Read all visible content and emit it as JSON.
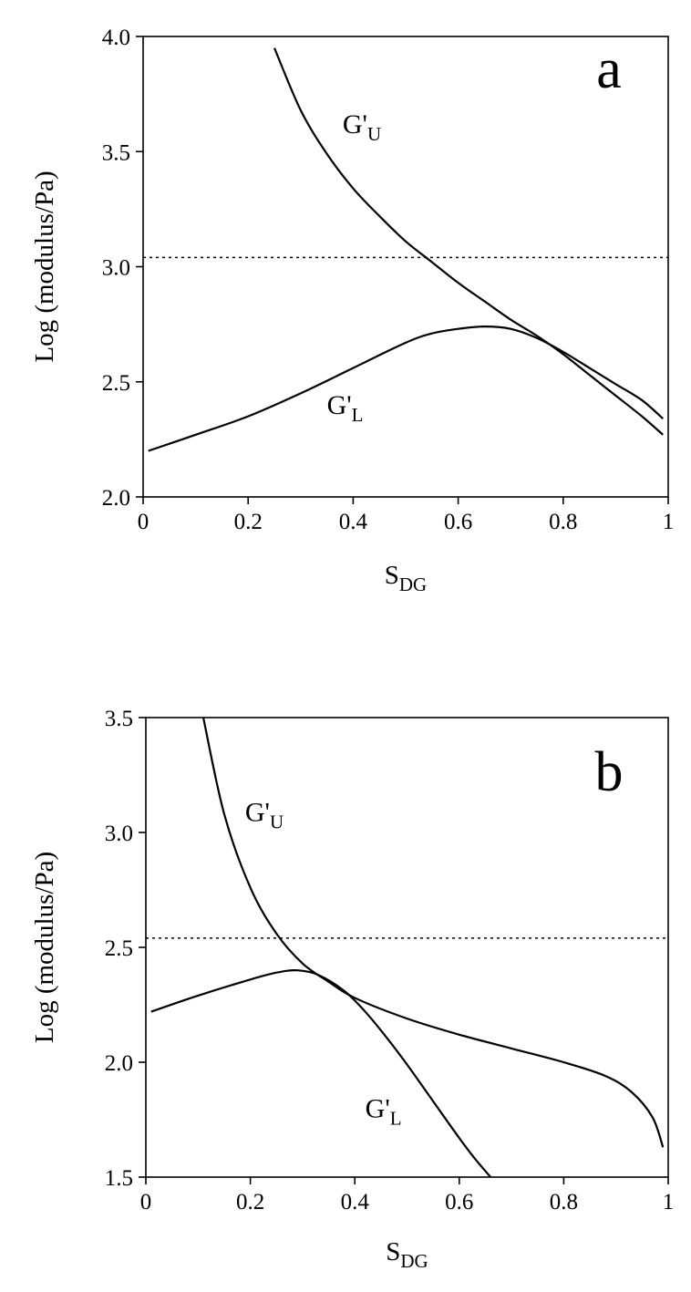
{
  "chart_data": [
    {
      "type": "line",
      "panel": "a",
      "xlabel": "S",
      "xlabel_sub": "DG",
      "ylabel": "Log (modulus/Pa)",
      "xlim": [
        0,
        1
      ],
      "ylim": [
        2.0,
        4.0
      ],
      "x_ticks": [
        0,
        0.2,
        0.4,
        0.6,
        0.8,
        1
      ],
      "x_tick_labels": [
        "0",
        "0.2",
        "0.4",
        "0.6",
        "0.8",
        "1"
      ],
      "y_ticks": [
        2.0,
        2.5,
        3.0,
        3.5,
        4.0
      ],
      "y_tick_labels": [
        "2.0",
        "2.5",
        "3.0",
        "3.5",
        "4.0"
      ],
      "grid": false,
      "reference_line": {
        "y": 3.04,
        "style": "dotted"
      },
      "series": [
        {
          "name": "G'",
          "name_sub": "U",
          "x": [
            0.25,
            0.3,
            0.35,
            0.4,
            0.45,
            0.5,
            0.55,
            0.6,
            0.65,
            0.7,
            0.75,
            0.8,
            0.85,
            0.9,
            0.95,
            0.99
          ],
          "y": [
            3.95,
            3.68,
            3.49,
            3.34,
            3.22,
            3.11,
            3.02,
            2.93,
            2.85,
            2.77,
            2.7,
            2.62,
            2.53,
            2.44,
            2.35,
            2.27
          ]
        },
        {
          "name": "G'",
          "name_sub": "L",
          "x": [
            0.01,
            0.1,
            0.2,
            0.3,
            0.4,
            0.5,
            0.55,
            0.6,
            0.65,
            0.7,
            0.75,
            0.8,
            0.85,
            0.9,
            0.95,
            0.99
          ],
          "y": [
            2.2,
            2.27,
            2.35,
            2.45,
            2.56,
            2.67,
            2.71,
            2.73,
            2.74,
            2.73,
            2.69,
            2.63,
            2.56,
            2.49,
            2.42,
            2.34
          ]
        }
      ],
      "labels": [
        {
          "text": "G'",
          "sub": "U",
          "x": 0.38,
          "y": 3.58
        },
        {
          "text": "G'",
          "sub": "L",
          "x": 0.35,
          "y": 2.36
        }
      ],
      "panel_letter": "a"
    },
    {
      "type": "line",
      "panel": "b",
      "xlabel": "S",
      "xlabel_sub": "DG",
      "ylabel": "Log (modulus/Pa)",
      "xlim": [
        0,
        1
      ],
      "ylim": [
        1.5,
        3.5
      ],
      "x_ticks": [
        0,
        0.2,
        0.4,
        0.6,
        0.8,
        1
      ],
      "x_tick_labels": [
        "0",
        "0.2",
        "0.4",
        "0.6",
        "0.8",
        "1"
      ],
      "y_ticks": [
        1.5,
        2.0,
        2.5,
        3.0,
        3.5
      ],
      "y_tick_labels": [
        "1.5",
        "2.0",
        "2.5",
        "3.0",
        "3.5"
      ],
      "grid": false,
      "reference_line": {
        "y": 2.54,
        "style": "dotted"
      },
      "series": [
        {
          "name": "G'",
          "name_sub": "U",
          "x": [
            0.11,
            0.15,
            0.2,
            0.25,
            0.3,
            0.35,
            0.4,
            0.5,
            0.6,
            0.7,
            0.8,
            0.88,
            0.93,
            0.97,
            0.99
          ],
          "y": [
            3.5,
            3.08,
            2.76,
            2.56,
            2.43,
            2.35,
            2.28,
            2.19,
            2.12,
            2.06,
            2.0,
            1.94,
            1.87,
            1.76,
            1.63
          ]
        },
        {
          "name": "G'",
          "name_sub": "L",
          "x": [
            0.01,
            0.1,
            0.2,
            0.25,
            0.29,
            0.33,
            0.38,
            0.42,
            0.46,
            0.5,
            0.55,
            0.6,
            0.63,
            0.66
          ],
          "y": [
            2.22,
            2.29,
            2.36,
            2.39,
            2.4,
            2.38,
            2.31,
            2.22,
            2.11,
            1.99,
            1.83,
            1.67,
            1.58,
            1.5
          ]
        }
      ],
      "labels": [
        {
          "text": "G'",
          "sub": "U",
          "x": 0.19,
          "y": 3.05
        },
        {
          "text": "G'",
          "sub": "L",
          "x": 0.42,
          "y": 1.76
        }
      ],
      "panel_letter": "b"
    }
  ]
}
